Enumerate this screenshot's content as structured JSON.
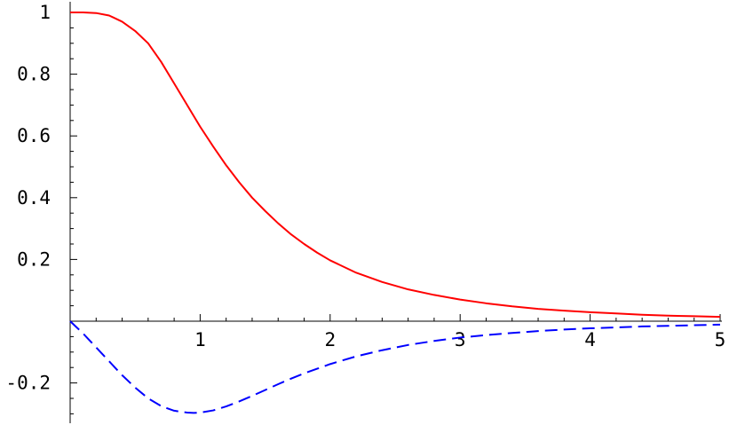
{
  "chart_data": {
    "type": "line",
    "title": "",
    "xlabel": "",
    "ylabel": "",
    "xlim": [
      0,
      5
    ],
    "ylim": [
      -0.32,
      1.03
    ],
    "grid": false,
    "legend": "none",
    "x_ticks": [
      {
        "value": 1,
        "label": "1"
      },
      {
        "value": 2,
        "label": "2"
      },
      {
        "value": 3,
        "label": "3"
      },
      {
        "value": 4,
        "label": "4"
      },
      {
        "value": 5,
        "label": "5"
      }
    ],
    "y_ticks": [
      {
        "value": 1,
        "label": "1"
      },
      {
        "value": 0.8,
        "label": "0.8"
      },
      {
        "value": 0.6,
        "label": "0.6"
      },
      {
        "value": 0.4,
        "label": "0.4"
      },
      {
        "value": 0.2,
        "label": "0.2"
      },
      {
        "value": -0.2,
        "label": "-0.2"
      }
    ],
    "series": [
      {
        "color": "#ff0000",
        "style": "solid",
        "x": [
          0,
          0.1,
          0.2,
          0.3,
          0.4,
          0.5,
          0.6,
          0.7,
          0.8,
          0.9,
          1.0,
          1.1,
          1.2,
          1.3,
          1.4,
          1.5,
          1.6,
          1.7,
          1.8,
          1.9,
          2.0,
          2.2,
          2.4,
          2.6,
          2.8,
          3.0,
          3.2,
          3.4,
          3.6,
          3.8,
          4.0,
          4.2,
          4.4,
          4.6,
          4.8,
          5.0
        ],
        "y": [
          1.0,
          1.0,
          0.998,
          0.99,
          0.97,
          0.94,
          0.9,
          0.84,
          0.77,
          0.7,
          0.63,
          0.566,
          0.505,
          0.45,
          0.4,
          0.357,
          0.317,
          0.281,
          0.25,
          0.222,
          0.197,
          0.157,
          0.127,
          0.103,
          0.085,
          0.07,
          0.058,
          0.048,
          0.04,
          0.034,
          0.029,
          0.025,
          0.021,
          0.018,
          0.016,
          0.014
        ]
      },
      {
        "color": "#0000ff",
        "style": "dashed",
        "x": [
          0,
          0.1,
          0.2,
          0.3,
          0.4,
          0.5,
          0.6,
          0.7,
          0.8,
          0.9,
          0.95,
          1.0,
          1.1,
          1.2,
          1.3,
          1.4,
          1.5,
          1.6,
          1.7,
          1.8,
          1.9,
          2.0,
          2.2,
          2.4,
          2.6,
          2.8,
          3.0,
          3.2,
          3.4,
          3.6,
          3.8,
          4.0,
          4.2,
          4.4,
          4.6,
          4.8,
          5.0
        ],
        "y": [
          0,
          -0.04,
          -0.085,
          -0.13,
          -0.175,
          -0.215,
          -0.25,
          -0.275,
          -0.29,
          -0.296,
          -0.297,
          -0.296,
          -0.289,
          -0.276,
          -0.26,
          -0.242,
          -0.223,
          -0.204,
          -0.186,
          -0.169,
          -0.154,
          -0.139,
          -0.114,
          -0.094,
          -0.077,
          -0.064,
          -0.053,
          -0.045,
          -0.038,
          -0.032,
          -0.027,
          -0.023,
          -0.02,
          -0.017,
          -0.015,
          -0.013,
          -0.011
        ]
      }
    ]
  }
}
